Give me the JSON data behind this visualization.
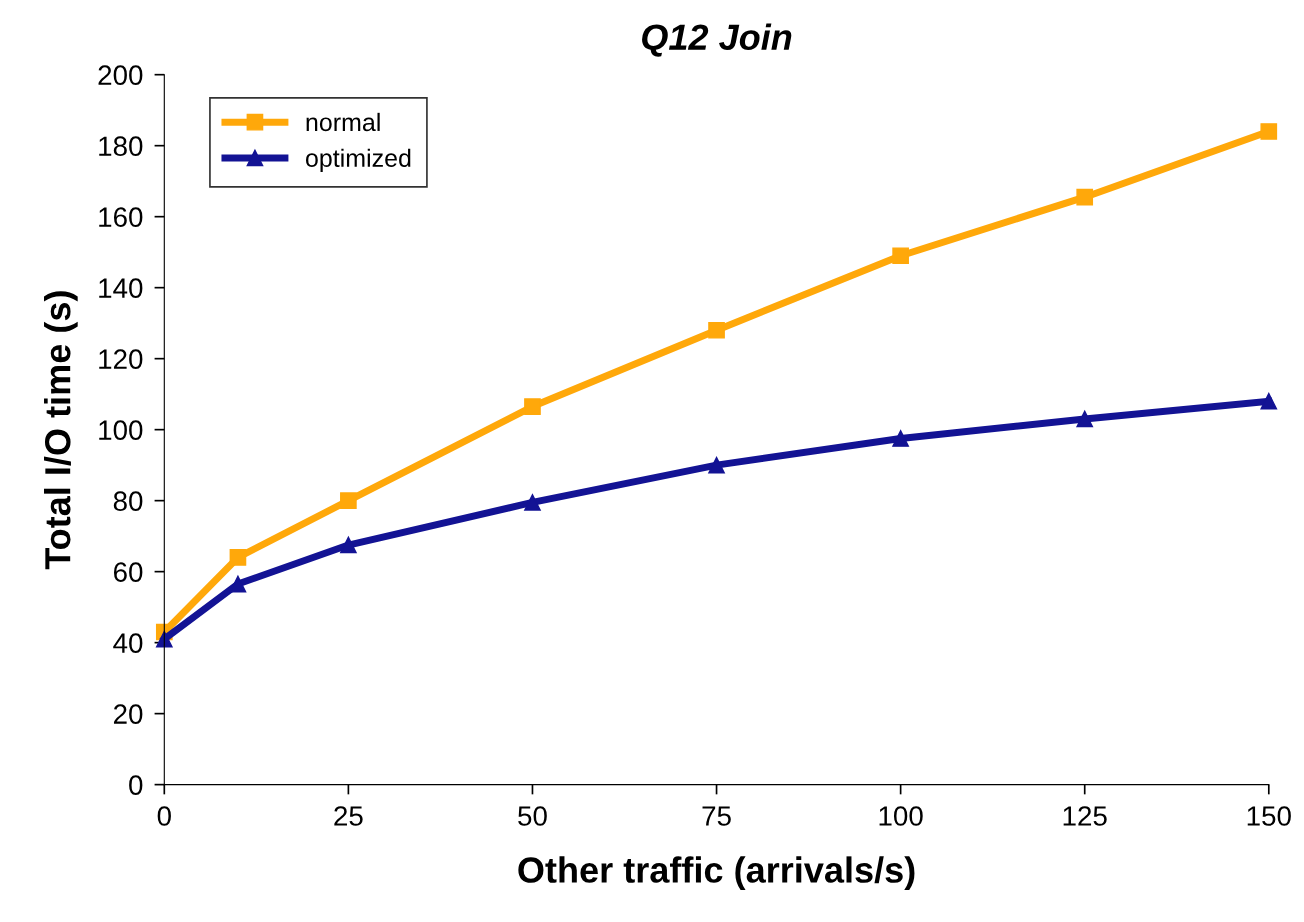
{
  "chart_data": {
    "type": "line",
    "title": "Q12 Join",
    "xlabel": "Other traffic (arrivals/s)",
    "ylabel": "Total I/O time (s)",
    "x": [
      0,
      10,
      25,
      50,
      75,
      100,
      125,
      150
    ],
    "series": [
      {
        "name": "normal",
        "color": "#ffa80a",
        "marker": "square",
        "values": [
          43,
          64,
          80,
          106.5,
          128,
          149,
          165.5,
          184
        ]
      },
      {
        "name": "optimized",
        "color": "#131394",
        "marker": "triangle",
        "values": [
          41,
          56.5,
          67.5,
          79.5,
          90,
          97.5,
          103,
          108
        ]
      }
    ],
    "xlim": [
      0,
      150
    ],
    "xticks": [
      0,
      25,
      50,
      75,
      100,
      125,
      150
    ],
    "ylim": [
      0,
      200
    ],
    "yticks": [
      0,
      20,
      40,
      60,
      80,
      100,
      120,
      140,
      160,
      180,
      200
    ],
    "grid": false,
    "legend": "top left",
    "line_style": "solid"
  }
}
